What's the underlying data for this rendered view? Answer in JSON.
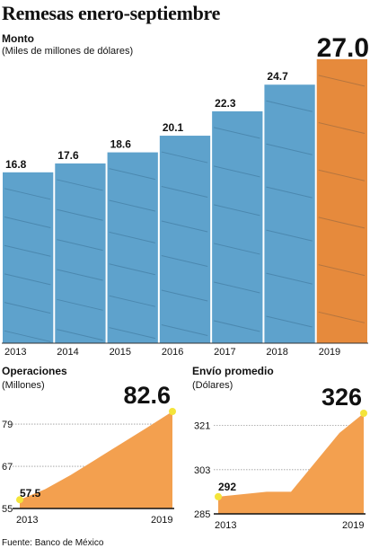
{
  "title": "Remesas enero-septiembre",
  "source": "Fuente: Banco de México",
  "chart_data": [
    {
      "type": "bar",
      "title": "Monto",
      "unit": "(Miles de millones de dólares)",
      "categories": [
        "2013",
        "2014",
        "2015",
        "2016",
        "2017",
        "2018",
        "2019"
      ],
      "values": [
        16.8,
        17.6,
        18.6,
        20.1,
        22.3,
        24.7,
        27.0
      ],
      "value_labels": [
        "16.8",
        "17.6",
        "18.6",
        "20.1",
        "22.3",
        "24.7",
        "27.0"
      ],
      "highlight": "2019",
      "colors": {
        "bar": "#5ea2cc",
        "highlight": "#e68a3c"
      }
    },
    {
      "type": "area",
      "title": "Operaciones",
      "unit": "(Millones)",
      "x": [
        "2013",
        "2014",
        "2015",
        "2016",
        "2017",
        "2018",
        "2019"
      ],
      "values": [
        57.5,
        60.5,
        64.5,
        69.0,
        73.5,
        78.0,
        82.6
      ],
      "yticks": [
        "55",
        "67",
        "79"
      ],
      "ylim": [
        55,
        82.6
      ],
      "xtick_labels": [
        "2013",
        "2019"
      ],
      "start_label": "57.5",
      "end_label": "82.6",
      "colors": {
        "area": "#f3a04f",
        "point": "#f4e43a"
      }
    },
    {
      "type": "area",
      "title": "Envío promedio",
      "unit": "(Dólares)",
      "x": [
        "2013",
        "2014",
        "2015",
        "2016",
        "2017",
        "2018",
        "2019"
      ],
      "values": [
        292,
        293,
        294,
        294,
        306,
        318,
        326
      ],
      "yticks": [
        "285",
        "303",
        "321"
      ],
      "ylim": [
        285,
        326
      ],
      "xtick_labels": [
        "2013",
        "2019"
      ],
      "start_label": "292",
      "end_label": "326",
      "colors": {
        "area": "#f3a04f",
        "point": "#f4e43a"
      }
    }
  ]
}
